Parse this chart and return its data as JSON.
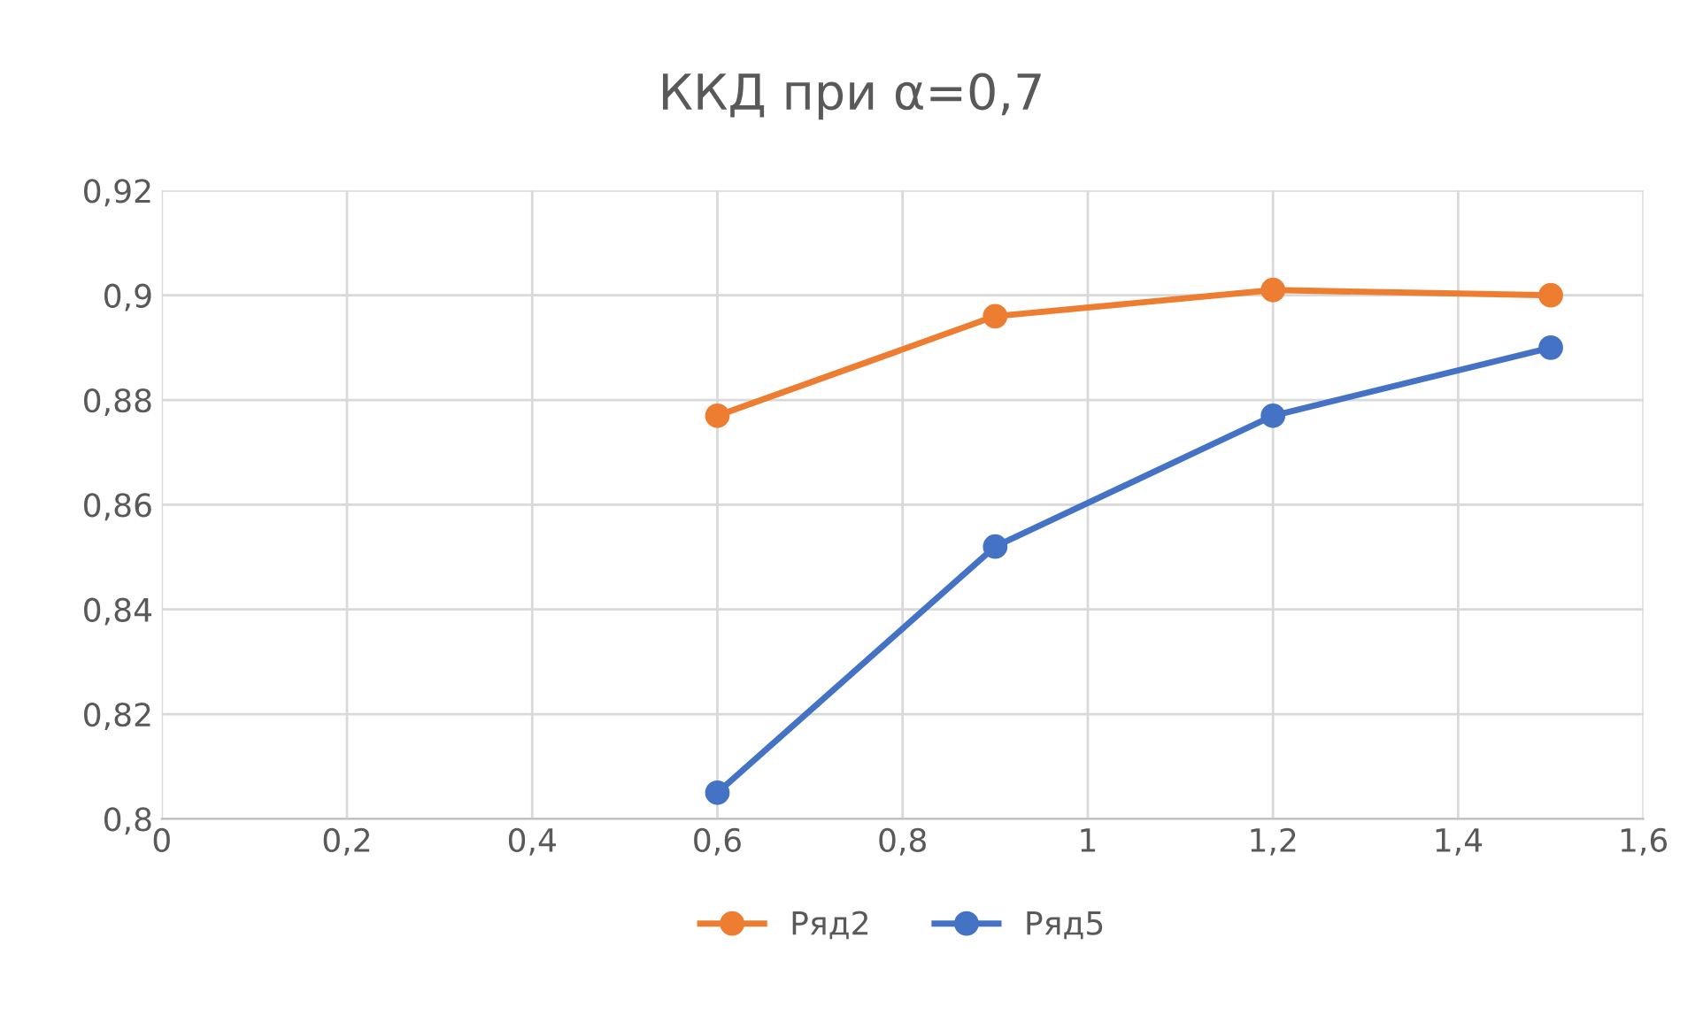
{
  "chart_data": {
    "type": "line",
    "title": "ККД при α=0,7",
    "x": [
      0.6,
      0.9,
      1.2,
      1.5
    ],
    "series": [
      {
        "name": "Ряд2",
        "color": "#ed7d31",
        "values": [
          0.877,
          0.896,
          0.901,
          0.9
        ]
      },
      {
        "name": "Ряд5",
        "color": "#4472c4",
        "values": [
          0.805,
          0.852,
          0.877,
          0.89
        ]
      }
    ],
    "xlim": [
      0,
      1.6
    ],
    "ylim": [
      0.8,
      0.92
    ],
    "xticks": [
      0,
      {
        "value": 0.2,
        "label": "0,2"
      },
      {
        "value": 0.4,
        "label": "0,4"
      },
      {
        "value": 0.6,
        "label": "0,6"
      },
      {
        "value": 0.8,
        "label": "0,8"
      },
      1,
      {
        "value": 1.2,
        "label": "1,2"
      },
      {
        "value": 1.4,
        "label": "1,4"
      },
      {
        "value": 1.6,
        "label": "1,6"
      }
    ],
    "yticks": [
      {
        "value": 0.8,
        "label": "0,8"
      },
      {
        "value": 0.82,
        "label": "0,82"
      },
      {
        "value": 0.84,
        "label": "0,84"
      },
      {
        "value": 0.86,
        "label": "0,86"
      },
      {
        "value": 0.88,
        "label": "0,88"
      },
      {
        "value": 0.9,
        "label": "0,9"
      },
      {
        "value": 0.92,
        "label": "0,92"
      }
    ],
    "grid": true,
    "legend": "bottom",
    "marker": "circle",
    "line_style": "solid"
  }
}
